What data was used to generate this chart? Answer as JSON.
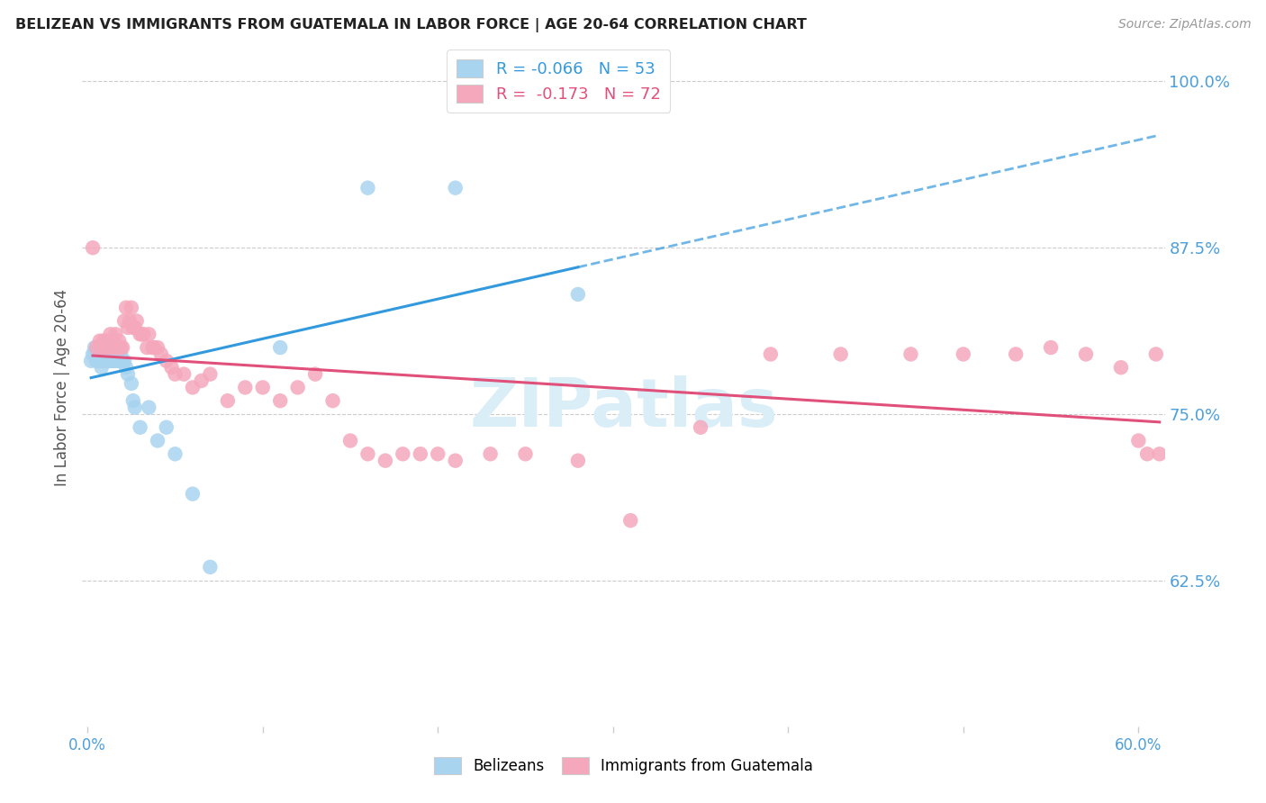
{
  "title": "BELIZEAN VS IMMIGRANTS FROM GUATEMALA IN LABOR FORCE | AGE 20-64 CORRELATION CHART",
  "source": "Source: ZipAtlas.com",
  "ylabel": "In Labor Force | Age 20-64",
  "ytick_labels": [
    "100.0%",
    "87.5%",
    "75.0%",
    "62.5%"
  ],
  "ytick_values": [
    1.0,
    0.875,
    0.75,
    0.625
  ],
  "xlim": [
    -0.003,
    0.615
  ],
  "ylim": [
    0.515,
    1.025
  ],
  "blue_color": "#A8D4F0",
  "pink_color": "#F5A8BC",
  "blue_line_color": "#3399DD",
  "pink_line_color": "#E0507A",
  "watermark_color": "#DAEEF8",
  "blue_x": [
    0.002,
    0.003,
    0.004,
    0.004,
    0.005,
    0.005,
    0.006,
    0.006,
    0.007,
    0.007,
    0.008,
    0.008,
    0.009,
    0.009,
    0.01,
    0.01,
    0.01,
    0.01,
    0.011,
    0.011,
    0.012,
    0.012,
    0.013,
    0.014,
    0.014,
    0.015,
    0.015,
    0.016,
    0.016,
    0.017,
    0.017,
    0.018,
    0.018,
    0.019,
    0.019,
    0.02,
    0.021,
    0.022,
    0.023,
    0.025,
    0.026,
    0.027,
    0.03,
    0.035,
    0.04,
    0.045,
    0.05,
    0.06,
    0.07,
    0.11,
    0.16,
    0.21,
    0.28
  ],
  "blue_y": [
    0.79,
    0.795,
    0.795,
    0.8,
    0.79,
    0.795,
    0.79,
    0.795,
    0.79,
    0.795,
    0.785,
    0.79,
    0.79,
    0.795,
    0.79,
    0.79,
    0.795,
    0.795,
    0.79,
    0.79,
    0.79,
    0.795,
    0.79,
    0.79,
    0.8,
    0.79,
    0.795,
    0.79,
    0.795,
    0.79,
    0.79,
    0.79,
    0.795,
    0.79,
    0.795,
    0.79,
    0.79,
    0.785,
    0.78,
    0.773,
    0.76,
    0.755,
    0.74,
    0.755,
    0.73,
    0.74,
    0.72,
    0.69,
    0.635,
    0.8,
    0.92,
    0.92,
    0.84
  ],
  "pink_x": [
    0.003,
    0.005,
    0.007,
    0.008,
    0.009,
    0.01,
    0.011,
    0.012,
    0.013,
    0.014,
    0.015,
    0.015,
    0.016,
    0.017,
    0.018,
    0.019,
    0.02,
    0.021,
    0.022,
    0.023,
    0.024,
    0.025,
    0.026,
    0.027,
    0.028,
    0.03,
    0.031,
    0.032,
    0.034,
    0.035,
    0.037,
    0.038,
    0.04,
    0.042,
    0.045,
    0.048,
    0.05,
    0.055,
    0.06,
    0.065,
    0.07,
    0.08,
    0.09,
    0.1,
    0.11,
    0.12,
    0.13,
    0.14,
    0.15,
    0.16,
    0.17,
    0.18,
    0.19,
    0.2,
    0.21,
    0.23,
    0.25,
    0.28,
    0.31,
    0.35,
    0.39,
    0.43,
    0.47,
    0.5,
    0.53,
    0.55,
    0.57,
    0.59,
    0.6,
    0.605,
    0.61,
    0.612
  ],
  "pink_y": [
    0.875,
    0.8,
    0.805,
    0.8,
    0.805,
    0.8,
    0.805,
    0.8,
    0.81,
    0.8,
    0.8,
    0.805,
    0.81,
    0.8,
    0.805,
    0.8,
    0.8,
    0.82,
    0.83,
    0.815,
    0.82,
    0.83,
    0.815,
    0.815,
    0.82,
    0.81,
    0.81,
    0.81,
    0.8,
    0.81,
    0.8,
    0.8,
    0.8,
    0.795,
    0.79,
    0.785,
    0.78,
    0.78,
    0.77,
    0.775,
    0.78,
    0.76,
    0.77,
    0.77,
    0.76,
    0.77,
    0.78,
    0.76,
    0.73,
    0.72,
    0.715,
    0.72,
    0.72,
    0.72,
    0.715,
    0.72,
    0.72,
    0.715,
    0.67,
    0.74,
    0.795,
    0.795,
    0.795,
    0.795,
    0.795,
    0.8,
    0.795,
    0.785,
    0.73,
    0.72,
    0.795,
    0.72
  ]
}
